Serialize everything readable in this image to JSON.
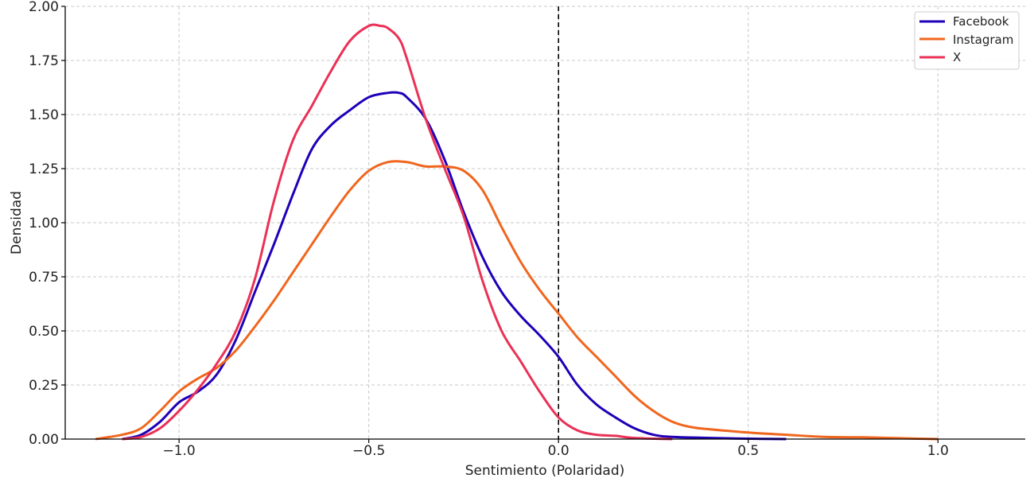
{
  "chart_data": {
    "type": "line",
    "title": "",
    "xlabel": "Sentimiento (Polaridad)",
    "ylabel": "Densidad",
    "xlim": [
      -1.3,
      1.23
    ],
    "ylim": [
      0,
      2.0
    ],
    "xticks": [
      -1.0,
      -0.5,
      0.0,
      0.5,
      1.0
    ],
    "xtick_labels": [
      "−1.0",
      "−0.5",
      "0.0",
      "0.5",
      "1.0"
    ],
    "yticks": [
      0,
      0.25,
      0.5,
      0.75,
      1.0,
      1.25,
      1.5,
      1.75,
      2.0
    ],
    "ytick_labels": [
      "0.00",
      "0.25",
      "0.50",
      "0.75",
      "1.00",
      "1.25",
      "1.50",
      "1.75",
      "2.00"
    ],
    "grid": true,
    "legend_position": "top-right",
    "reference_line": {
      "x": 0.0,
      "style": "dashed",
      "color": "#000000"
    },
    "series": [
      {
        "name": "Facebook",
        "color": "#1f00b8",
        "x": [
          -1.15,
          -1.1,
          -1.05,
          -1.0,
          -0.95,
          -0.9,
          -0.85,
          -0.8,
          -0.75,
          -0.7,
          -0.65,
          -0.6,
          -0.55,
          -0.5,
          -0.45,
          -0.42,
          -0.4,
          -0.35,
          -0.3,
          -0.25,
          -0.2,
          -0.15,
          -0.1,
          -0.05,
          0.0,
          0.05,
          0.1,
          0.15,
          0.2,
          0.25,
          0.3,
          0.4,
          0.5,
          0.6
        ],
        "y": [
          0.0,
          0.02,
          0.08,
          0.17,
          0.22,
          0.3,
          0.46,
          0.68,
          0.9,
          1.13,
          1.34,
          1.45,
          1.52,
          1.58,
          1.6,
          1.6,
          1.58,
          1.48,
          1.29,
          1.05,
          0.84,
          0.68,
          0.57,
          0.48,
          0.38,
          0.25,
          0.16,
          0.1,
          0.05,
          0.02,
          0.01,
          0.005,
          0.002,
          0.0
        ]
      },
      {
        "name": "Instagram",
        "color": "#f0661e",
        "x": [
          -1.22,
          -1.15,
          -1.1,
          -1.05,
          -1.0,
          -0.95,
          -0.9,
          -0.85,
          -0.8,
          -0.75,
          -0.7,
          -0.65,
          -0.6,
          -0.55,
          -0.5,
          -0.45,
          -0.4,
          -0.35,
          -0.3,
          -0.25,
          -0.2,
          -0.15,
          -0.1,
          -0.05,
          0.0,
          0.05,
          0.1,
          0.15,
          0.2,
          0.25,
          0.3,
          0.35,
          0.4,
          0.5,
          0.6,
          0.7,
          0.8,
          0.9,
          1.0
        ],
        "y": [
          0.0,
          0.02,
          0.05,
          0.13,
          0.22,
          0.28,
          0.33,
          0.41,
          0.52,
          0.64,
          0.77,
          0.9,
          1.03,
          1.15,
          1.24,
          1.28,
          1.28,
          1.26,
          1.26,
          1.24,
          1.15,
          0.98,
          0.82,
          0.69,
          0.58,
          0.47,
          0.38,
          0.29,
          0.2,
          0.13,
          0.08,
          0.055,
          0.045,
          0.03,
          0.02,
          0.01,
          0.008,
          0.004,
          0.0
        ]
      },
      {
        "name": "X",
        "color": "#ea3156",
        "x": [
          -1.15,
          -1.1,
          -1.05,
          -1.0,
          -0.95,
          -0.9,
          -0.85,
          -0.8,
          -0.75,
          -0.7,
          -0.65,
          -0.6,
          -0.55,
          -0.5,
          -0.47,
          -0.45,
          -0.42,
          -0.4,
          -0.35,
          -0.3,
          -0.25,
          -0.2,
          -0.15,
          -0.1,
          -0.05,
          0.0,
          0.05,
          0.1,
          0.15,
          0.2,
          0.3
        ],
        "y": [
          0.0,
          0.01,
          0.05,
          0.13,
          0.23,
          0.35,
          0.5,
          0.74,
          1.1,
          1.38,
          1.54,
          1.7,
          1.84,
          1.91,
          1.91,
          1.9,
          1.85,
          1.76,
          1.48,
          1.25,
          1.03,
          0.73,
          0.5,
          0.36,
          0.22,
          0.1,
          0.04,
          0.02,
          0.015,
          0.005,
          0.0
        ]
      }
    ]
  }
}
